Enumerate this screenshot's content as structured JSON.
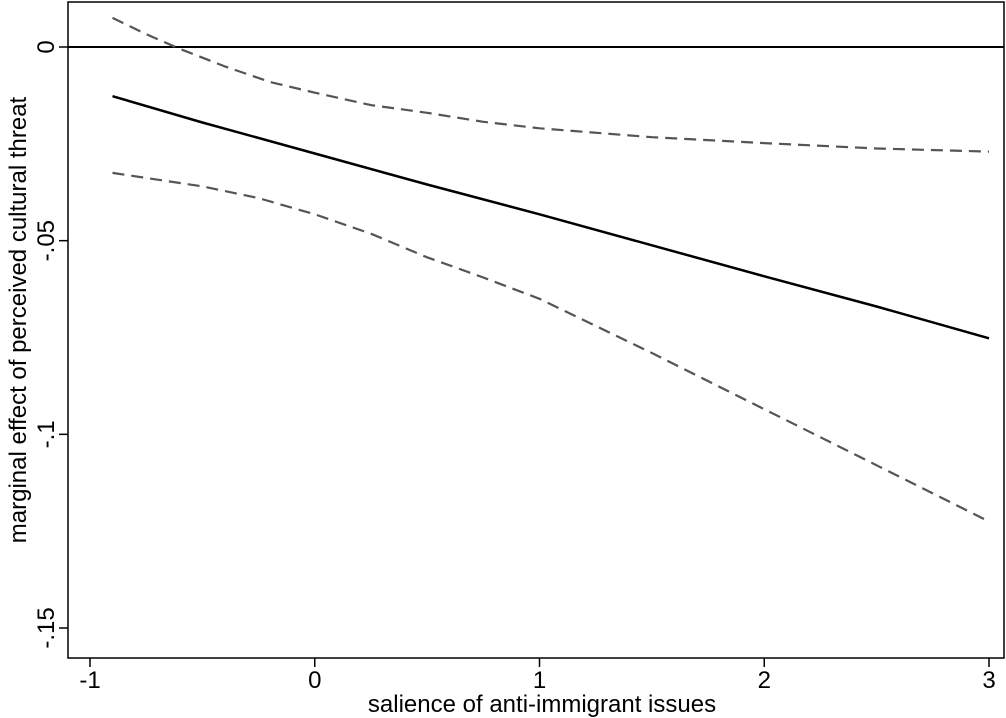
{
  "chart_data": {
    "type": "line",
    "title": "",
    "xlabel": "salience of anti-immigrant issues",
    "ylabel": "marginal effect of perceived cultural threat",
    "xlim": [
      -1,
      3
    ],
    "ylim": [
      -0.15,
      0
    ],
    "xticks": [
      -1,
      0,
      1,
      2,
      3
    ],
    "xtick_labels": [
      "-1",
      "0",
      "1",
      "2",
      "3"
    ],
    "yticks": [
      -0.15,
      -0.1,
      -0.05,
      0
    ],
    "ytick_labels": [
      "-.15",
      "-.1",
      "-.05",
      "0"
    ],
    "reference_line_y": 0,
    "grid": false,
    "legend": "none",
    "series": [
      {
        "style": "solid",
        "color": "#000000",
        "x": [
          -0.9,
          -0.5,
          0,
          0.5,
          1,
          1.5,
          2,
          2.5,
          3
        ],
        "y": [
          -0.0127,
          -0.0195,
          -0.0275,
          -0.0355,
          -0.0432,
          -0.0512,
          -0.0592,
          -0.067,
          -0.0752
        ]
      },
      {
        "style": "dashed",
        "color": "#555555",
        "x": [
          -0.9,
          -0.75,
          -0.6,
          -0.4,
          -0.2,
          0,
          0.25,
          0.5,
          0.75,
          1,
          1.5,
          2,
          2.5,
          3
        ],
        "y": [
          0.0075,
          0.0033,
          -0.0005,
          -0.005,
          -0.009,
          -0.0118,
          -0.015,
          -0.017,
          -0.0193,
          -0.021,
          -0.0233,
          -0.0248,
          -0.0262,
          -0.027
        ]
      },
      {
        "style": "dashed",
        "color": "#555555",
        "x": [
          -0.9,
          -0.5,
          -0.25,
          0,
          0.25,
          0.5,
          0.75,
          1,
          1.5,
          2,
          2.5,
          3
        ],
        "y": [
          -0.0325,
          -0.036,
          -0.039,
          -0.0432,
          -0.0482,
          -0.0543,
          -0.0595,
          -0.065,
          -0.079,
          -0.0935,
          -0.108,
          -0.1225
        ]
      }
    ]
  }
}
